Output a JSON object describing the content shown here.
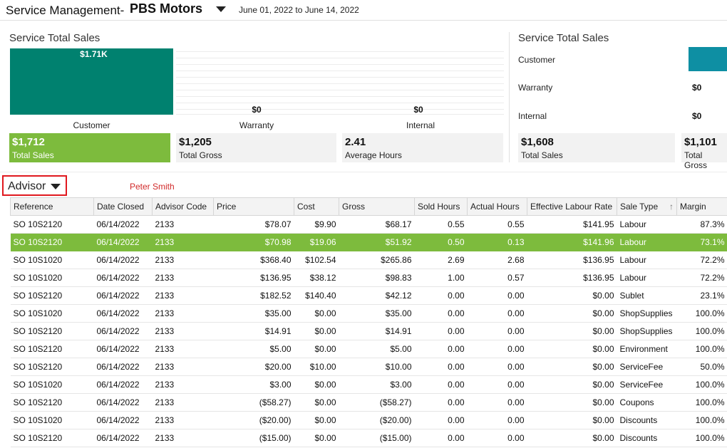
{
  "header": {
    "app_title": "Service Management-",
    "company": "PBS Motors",
    "date_range": "June 01, 2022 to June 14, 2022"
  },
  "left_panel": {
    "title": "Service Total Sales",
    "bars": [
      {
        "label": "$1.71K",
        "category": "Customer"
      },
      {
        "label": "$0",
        "category": "Warranty"
      },
      {
        "label": "$0",
        "category": "Internal"
      }
    ],
    "kpis": [
      {
        "value": "$1,712",
        "label": "Total Sales"
      },
      {
        "value": "$1,205",
        "label": "Total Gross"
      },
      {
        "value": "2.41",
        "label": "Average Hours"
      }
    ]
  },
  "right_panel": {
    "title": "Service Total Sales",
    "rows": [
      {
        "category": "Customer",
        "value": ""
      },
      {
        "category": "Warranty",
        "value": "$0"
      },
      {
        "category": "Internal",
        "value": "$0"
      }
    ],
    "kpis": [
      {
        "value": "$1,608",
        "label": "Total Sales"
      },
      {
        "value": "$1,101",
        "label": "Total Gross"
      }
    ]
  },
  "advisor": {
    "label": "Advisor",
    "name": "Peter Smith"
  },
  "colors": {
    "bar_customer": "#00816f",
    "kpi_green": "#7dbb3d",
    "right_bar": "#0e8fa3",
    "advisor_border": "#e0181e"
  },
  "table": {
    "columns": [
      "Reference",
      "Date Closed",
      "Advisor Code",
      "Price",
      "Cost",
      "Gross",
      "Sold Hours",
      "Actual Hours",
      "Effective Labour Rate",
      "Sale Type",
      "Margin"
    ],
    "sort_icon": "arrow-up-icon",
    "rows": [
      [
        "SO 10S2120",
        "06/14/2022",
        "2133",
        "$78.07",
        "$9.90",
        "$68.17",
        "0.55",
        "0.55",
        "$141.95",
        "Labour",
        "87.3%"
      ],
      [
        "SO 10S2120",
        "06/14/2022",
        "2133",
        "$70.98",
        "$19.06",
        "$51.92",
        "0.50",
        "0.13",
        "$141.96",
        "Labour",
        "73.1%"
      ],
      [
        "SO 10S1020",
        "06/14/2022",
        "2133",
        "$368.40",
        "$102.54",
        "$265.86",
        "2.69",
        "2.68",
        "$136.95",
        "Labour",
        "72.2%"
      ],
      [
        "SO 10S1020",
        "06/14/2022",
        "2133",
        "$136.95",
        "$38.12",
        "$98.83",
        "1.00",
        "0.57",
        "$136.95",
        "Labour",
        "72.2%"
      ],
      [
        "SO 10S2120",
        "06/14/2022",
        "2133",
        "$182.52",
        "$140.40",
        "$42.12",
        "0.00",
        "0.00",
        "$0.00",
        "Sublet",
        "23.1%"
      ],
      [
        "SO 10S1020",
        "06/14/2022",
        "2133",
        "$35.00",
        "$0.00",
        "$35.00",
        "0.00",
        "0.00",
        "$0.00",
        "ShopSupplies",
        "100.0%"
      ],
      [
        "SO 10S2120",
        "06/14/2022",
        "2133",
        "$14.91",
        "$0.00",
        "$14.91",
        "0.00",
        "0.00",
        "$0.00",
        "ShopSupplies",
        "100.0%"
      ],
      [
        "SO 10S2120",
        "06/14/2022",
        "2133",
        "$5.00",
        "$0.00",
        "$5.00",
        "0.00",
        "0.00",
        "$0.00",
        "Environment",
        "100.0%"
      ],
      [
        "SO 10S2120",
        "06/14/2022",
        "2133",
        "$20.00",
        "$10.00",
        "$10.00",
        "0.00",
        "0.00",
        "$0.00",
        "ServiceFee",
        "50.0%"
      ],
      [
        "SO 10S1020",
        "06/14/2022",
        "2133",
        "$3.00",
        "$0.00",
        "$3.00",
        "0.00",
        "0.00",
        "$0.00",
        "ServiceFee",
        "100.0%"
      ],
      [
        "SO 10S2120",
        "06/14/2022",
        "2133",
        "($58.27)",
        "$0.00",
        "($58.27)",
        "0.00",
        "0.00",
        "$0.00",
        "Coupons",
        "100.0%"
      ],
      [
        "SO 10S1020",
        "06/14/2022",
        "2133",
        "($20.00)",
        "$0.00",
        "($20.00)",
        "0.00",
        "0.00",
        "$0.00",
        "Discounts",
        "100.0%"
      ],
      [
        "SO 10S2120",
        "06/14/2022",
        "2133",
        "($15.00)",
        "$0.00",
        "($15.00)",
        "0.00",
        "0.00",
        "$0.00",
        "Discounts",
        "100.0%"
      ]
    ],
    "selected_row": 1
  }
}
